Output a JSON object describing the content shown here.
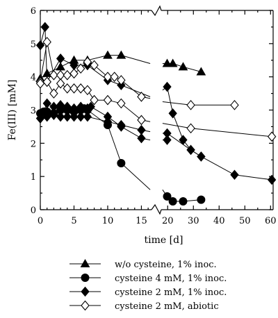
{
  "chart_data": {
    "type": "line",
    "xlabel": "time [d]",
    "ylabel": "Fe(III) [mM]",
    "ylim": [
      0,
      6
    ],
    "left_xlim": [
      0,
      16.5
    ],
    "right_xlim": [
      17.5,
      61
    ],
    "xticks_left": [
      "0",
      "5",
      "10",
      "15"
    ],
    "xticks_right": [
      "20",
      "30",
      "40",
      "50",
      "60"
    ],
    "yticks": [
      "0",
      "1",
      "2",
      "3",
      "4",
      "5",
      "6"
    ],
    "axis_break": true,
    "grid": false,
    "legend_position": "below-plot",
    "series": [
      {
        "name": "w/o cysteine, 1% inoc.",
        "marker": "triangle-filled",
        "segments": [
          [
            [
              0,
              3.95
            ],
            [
              1,
              4.1
            ],
            [
              3,
              4.3
            ],
            [
              5,
              4.5
            ],
            [
              7,
              4.5
            ],
            [
              10,
              4.65
            ],
            [
              12,
              4.65
            ],
            [
              16.3,
              4.4
            ]
          ],
          [
            [
              18,
              4.4
            ],
            [
              19.8,
              4.4
            ],
            [
              22,
              4.4
            ],
            [
              26,
              4.3
            ],
            [
              33,
              4.15
            ]
          ]
        ]
      },
      {
        "name": "cysteine 4 mM, 1% inoc.",
        "marker": "circle-filled",
        "segments": [
          [
            [
              0,
              2.9
            ],
            [
              0.5,
              2.95
            ],
            [
              1,
              2.95
            ],
            [
              2,
              2.9
            ],
            [
              3,
              3.0
            ],
            [
              4,
              3.0
            ],
            [
              5,
              2.95
            ],
            [
              6,
              3.0
            ],
            [
              6.5,
              3.05
            ],
            [
              7,
              3.0
            ],
            [
              10,
              2.55
            ],
            [
              12,
              1.4
            ],
            [
              16.3,
              0.6
            ]
          ],
          [
            [
              18,
              0.6
            ],
            [
              19.8,
              0.4
            ],
            [
              22,
              0.25
            ],
            [
              26,
              0.25
            ],
            [
              33,
              0.3
            ]
          ]
        ]
      },
      {
        "name": "cysteine 2 mM, 1% inoc.",
        "marker": "diamond-filled",
        "segments": [
          [
            [
              0,
              4.95
            ],
            [
              0.7,
              5.5
            ],
            [
              1,
              3.85
            ],
            [
              3,
              4.55
            ],
            [
              5,
              4.35
            ],
            [
              7,
              4.35
            ],
            [
              10,
              3.9
            ],
            [
              12,
              3.75
            ],
            [
              16.3,
              3.4
            ]
          ],
          [
            [
              18,
              3.6
            ],
            [
              19.8,
              3.7
            ],
            [
              22,
              2.9
            ],
            [
              26,
              2.1
            ],
            [
              29,
              1.8
            ],
            [
              33,
              1.6
            ],
            [
              46,
              1.05
            ],
            [
              60.5,
              0.9
            ]
          ]
        ]
      },
      {
        "name": "cysteine 2 mM, 1% inoc.",
        "marker": "diamond-filled",
        "segments": [
          [
            [
              0,
              2.75
            ],
            [
              1,
              3.2
            ],
            [
              2,
              3.1
            ],
            [
              3,
              3.15
            ],
            [
              4,
              3.1
            ],
            [
              5,
              3.05
            ],
            [
              6,
              3.1
            ],
            [
              7,
              3.05
            ],
            [
              7.5,
              3.1
            ],
            [
              10,
              2.8
            ],
            [
              12,
              2.5
            ],
            [
              15,
              2.15
            ],
            [
              16.3,
              2.1
            ]
          ],
          [
            [
              18,
              2.1
            ],
            [
              19.8,
              2.1
            ]
          ]
        ]
      },
      {
        "name": "cysteine 2 mM, 1% inoc.",
        "marker": "diamond-filled",
        "segments": [
          [
            [
              0,
              2.75
            ],
            [
              1,
              2.8
            ],
            [
              2,
              2.85
            ],
            [
              3,
              2.8
            ],
            [
              4,
              2.8
            ],
            [
              5,
              2.8
            ],
            [
              6,
              2.8
            ],
            [
              7,
              2.8
            ],
            [
              10,
              2.65
            ],
            [
              12,
              2.55
            ],
            [
              15,
              2.4
            ],
            [
              16.3,
              2.35
            ]
          ],
          [
            [
              18,
              2.3
            ],
            [
              19.8,
              2.3
            ],
            [
              29,
              1.8
            ],
            [
              33,
              1.6
            ]
          ]
        ]
      },
      {
        "name": "cysteine 2 mM, abiotic",
        "marker": "diamond-open",
        "segments": [
          [
            [
              0,
              3.85
            ],
            [
              1,
              5.05
            ],
            [
              2,
              4.05
            ],
            [
              3,
              4.05
            ],
            [
              4,
              4.05
            ],
            [
              5,
              4.1
            ],
            [
              6,
              4.25
            ],
            [
              7,
              4.45
            ],
            [
              8,
              4.35
            ],
            [
              10,
              4.0
            ],
            [
              11,
              4.0
            ],
            [
              12,
              3.9
            ],
            [
              15,
              3.4
            ],
            [
              16.3,
              3.35
            ]
          ],
          [
            [
              18,
              3.25
            ],
            [
              29,
              3.15
            ],
            [
              46,
              3.15
            ]
          ]
        ]
      },
      {
        "name": "cysteine 2 mM, abiotic",
        "marker": "diamond-open",
        "segments": [
          [
            [
              0,
              3.8
            ],
            [
              1,
              3.85
            ],
            [
              2,
              3.5
            ],
            [
              3,
              3.8
            ],
            [
              4,
              3.65
            ],
            [
              5,
              3.65
            ],
            [
              6,
              3.65
            ],
            [
              7,
              3.6
            ],
            [
              8,
              3.3
            ],
            [
              10,
              3.3
            ],
            [
              12,
              3.2
            ],
            [
              15,
              2.7
            ],
            [
              16.3,
              2.65
            ]
          ],
          [
            [
              18,
              2.6
            ],
            [
              29,
              2.45
            ],
            [
              60.5,
              2.2
            ]
          ]
        ]
      }
    ],
    "legend": [
      {
        "marker": "triangle-filled",
        "label": "w/o cysteine, 1% inoc."
      },
      {
        "marker": "circle-filled",
        "label": "cysteine 4 mM, 1% inoc."
      },
      {
        "marker": "diamond-filled",
        "label": "cysteine 2 mM, 1% inoc."
      },
      {
        "marker": "diamond-open",
        "label": "cysteine 2 mM, abiotic"
      }
    ]
  }
}
